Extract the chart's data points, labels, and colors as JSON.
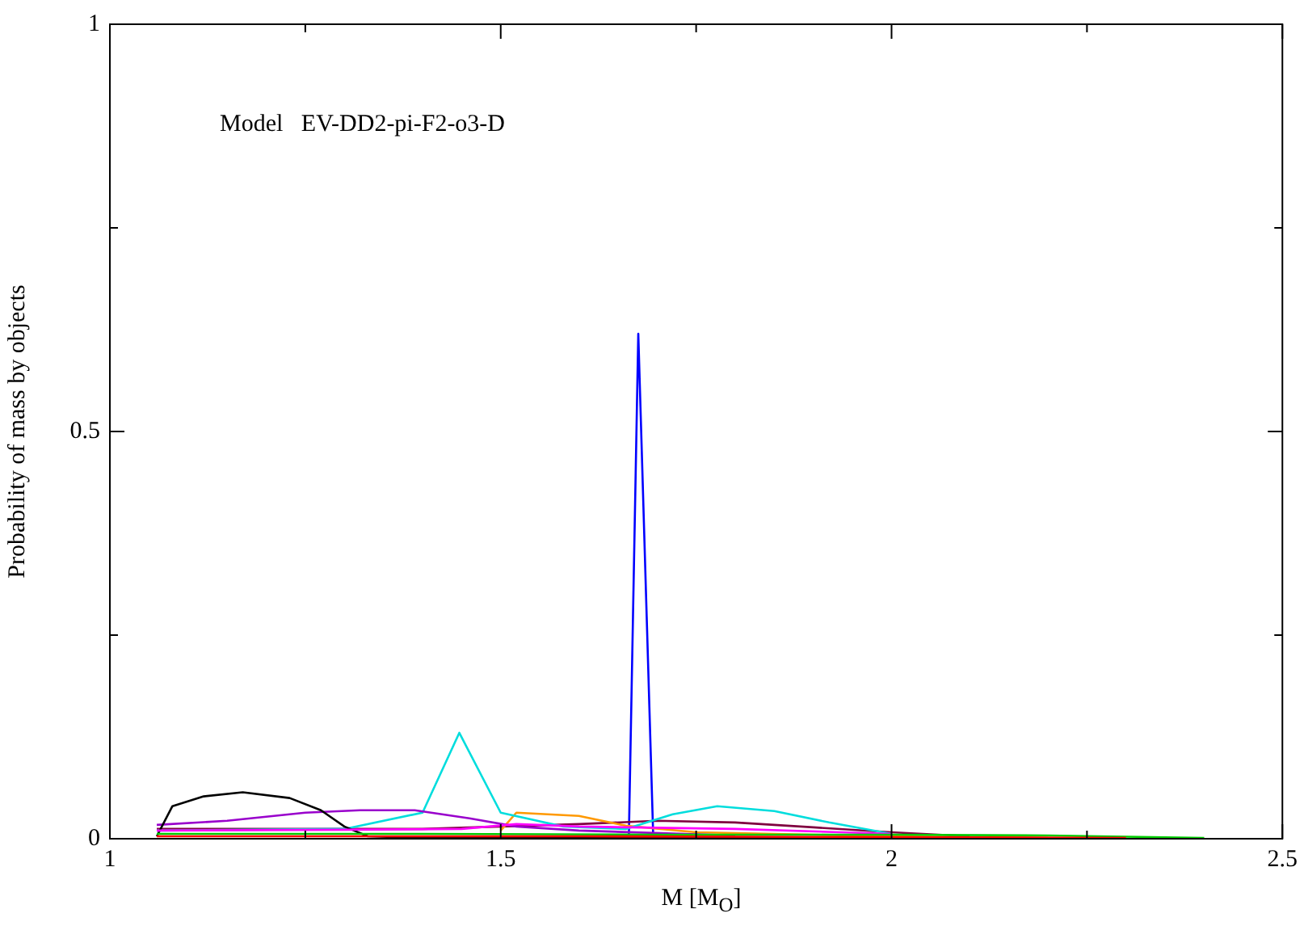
{
  "chart_data": {
    "type": "line",
    "xlabel": "M [M$_{O}$]",
    "ylabel": "Probability of mass by objects",
    "annotations": [
      "Model   EV-DD2-pi-F2-o3-D"
    ],
    "xlim": [
      1,
      2.5
    ],
    "ylim": [
      0,
      1
    ],
    "xticks": [
      1,
      {
        "value": 1.25,
        "label": null
      },
      1.5,
      {
        "value": 1.75,
        "label": null
      },
      2,
      {
        "value": 2.25,
        "label": null
      },
      2.5
    ],
    "yticks": [
      0,
      {
        "value": 0.25,
        "label": null
      },
      0.5,
      {
        "value": 0.75,
        "label": null
      },
      1
    ],
    "grid": false,
    "legend": false,
    "marker": "none",
    "line_style": "solid",
    "series": [
      {
        "color": "#ff0000",
        "x": [
          1.06,
          1.3,
          1.6,
          2.0,
          2.3
        ],
        "values": [
          0.003,
          0.003,
          0.003,
          0.002,
          0.001
        ]
      },
      {
        "color": "#00cc00",
        "x": [
          1.06,
          1.4,
          1.7,
          2.0,
          2.2,
          2.4
        ],
        "values": [
          0.006,
          0.006,
          0.005,
          0.005,
          0.004,
          0.001
        ]
      },
      {
        "color": "#ff00ff",
        "x": [
          1.06,
          1.3,
          1.45,
          1.52,
          1.6,
          1.8,
          2.0
        ],
        "values": [
          0.01,
          0.011,
          0.012,
          0.018,
          0.015,
          0.012,
          0.006
        ]
      },
      {
        "color": "#000000",
        "x": [
          1.06,
          1.08,
          1.12,
          1.17,
          1.23,
          1.27,
          1.3,
          1.33,
          1.4,
          1.6,
          1.8,
          2.0
        ],
        "values": [
          0.003,
          0.04,
          0.052,
          0.057,
          0.05,
          0.035,
          0.015,
          0.003,
          0.001,
          0.001,
          0.001,
          0.001
        ]
      },
      {
        "color": "#9900cc",
        "x": [
          1.06,
          1.15,
          1.25,
          1.32,
          1.39,
          1.46,
          1.52,
          1.6,
          1.8
        ],
        "values": [
          0.017,
          0.022,
          0.032,
          0.035,
          0.035,
          0.025,
          0.015,
          0.01,
          0.004
        ]
      },
      {
        "color": "#00dddd",
        "x": [
          1.06,
          1.3,
          1.4,
          1.447,
          1.5,
          1.58,
          1.66,
          1.72,
          1.777,
          1.85,
          1.92,
          2.0
        ],
        "values": [
          0.01,
          0.012,
          0.032,
          0.13,
          0.032,
          0.015,
          0.012,
          0.03,
          0.04,
          0.034,
          0.02,
          0.006
        ]
      },
      {
        "color": "#ff9900",
        "x": [
          1.5,
          1.52,
          1.6,
          1.66,
          1.75,
          1.9,
          2.0,
          2.2
        ],
        "values": [
          0.01,
          0.032,
          0.028,
          0.016,
          0.008,
          0.005,
          0.003,
          0.001
        ]
      },
      {
        "color": "#800040",
        "x": [
          1.06,
          1.4,
          1.6,
          1.7,
          1.8,
          1.9,
          2.0,
          2.1
        ],
        "values": [
          0.012,
          0.012,
          0.018,
          0.022,
          0.02,
          0.014,
          0.008,
          0.003
        ]
      },
      {
        "color": "#0000ff",
        "x": [
          1.664,
          1.676,
          1.695
        ],
        "values": [
          0.006,
          0.62,
          0.006
        ]
      }
    ]
  }
}
